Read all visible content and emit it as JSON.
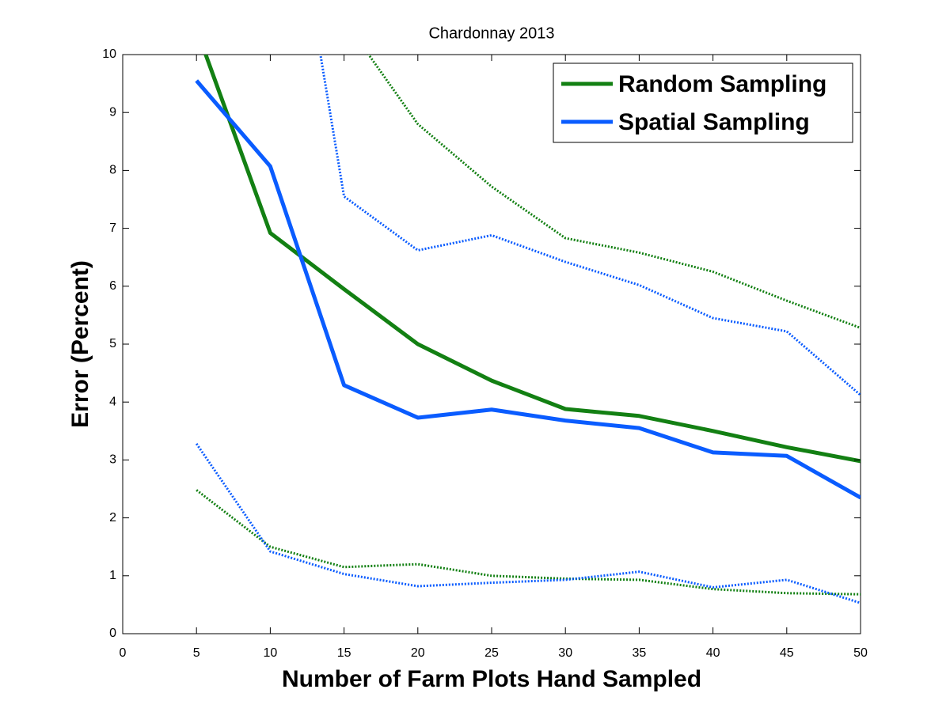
{
  "chart_data": {
    "type": "line",
    "title": "Chardonnay 2013",
    "x_label": "Number of Farm Plots Hand Sampled",
    "y_label": "Error (Percent)",
    "x": [
      5,
      10,
      15,
      20,
      25,
      30,
      35,
      40,
      45,
      50
    ],
    "series": [
      {
        "name": "Random Sampling",
        "color": "#138013",
        "style": "solid",
        "values": [
          10.44,
          6.92,
          5.95,
          5.0,
          4.37,
          3.88,
          3.76,
          3.5,
          3.22,
          2.98
        ]
      },
      {
        "name": "Spatial Sampling",
        "color": "#0a5cff",
        "style": "solid",
        "values": [
          9.55,
          8.07,
          4.29,
          3.73,
          3.87,
          3.68,
          3.55,
          3.13,
          3.07,
          2.35
        ]
      },
      {
        "color": "#138013",
        "style": "dotted",
        "values": [
          null,
          null,
          10.6,
          8.8,
          7.72,
          6.83,
          6.58,
          6.25,
          5.75,
          5.28
        ]
      },
      {
        "color": "#0a5cff",
        "style": "dotted",
        "values": [
          null,
          15.2,
          7.55,
          6.62,
          6.88,
          6.42,
          6.02,
          5.45,
          5.22,
          4.12
        ]
      },
      {
        "color": "#138013",
        "style": "dotted",
        "values": [
          2.48,
          1.5,
          1.15,
          1.2,
          1.0,
          0.95,
          0.93,
          0.77,
          0.7,
          0.68
        ]
      },
      {
        "color": "#0a5cff",
        "style": "dotted",
        "values": [
          3.28,
          1.42,
          1.03,
          0.82,
          0.88,
          0.93,
          1.07,
          0.8,
          0.93,
          0.53
        ]
      }
    ],
    "xlim": [
      0,
      50
    ],
    "xticks": [
      0,
      5,
      10,
      15,
      20,
      25,
      30,
      35,
      40,
      45,
      50
    ],
    "ylim": [
      0,
      10
    ],
    "yticks": [
      0,
      1,
      2,
      3,
      4,
      5,
      6,
      7,
      8,
      9,
      10
    ],
    "grid": false,
    "legend_position": "upper-right"
  }
}
